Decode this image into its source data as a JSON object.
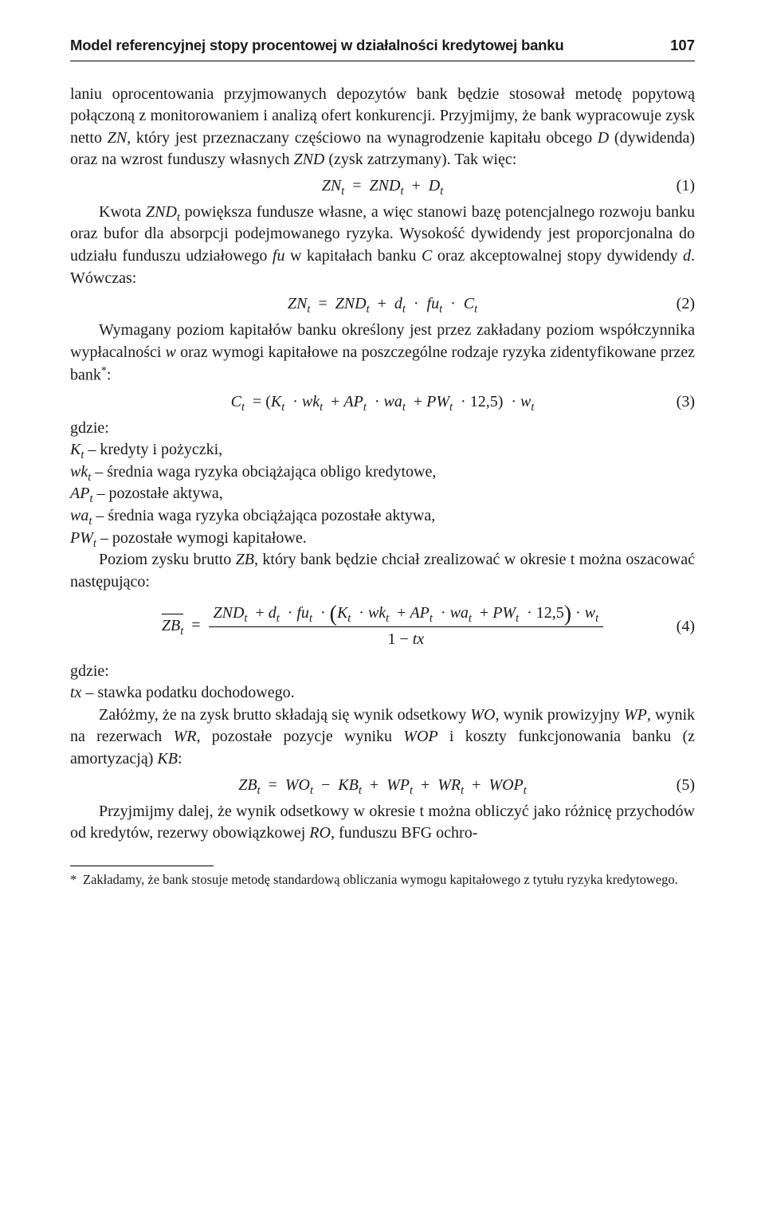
{
  "page": {
    "running_title": "Model referencyjnej stopy procentowej w działalności kredytowej banku",
    "page_number": "107"
  },
  "para": {
    "p1": "laniu oprocentowania przyjmowanych depozytów bank będzie stosował metodę popytową połączoną z monitorowaniem i analizą ofert konkurencji. Przyjmijmy, że bank wypracowuje zysk netto ",
    "p1_zn": "ZN",
    "p1b": ", który jest przeznaczany częściowo na wynagrodzenie kapitału obcego ",
    "p1_d": "D",
    "p1c": " (dywidenda) oraz na wzrost funduszy własnych ",
    "p1_znd": "ZND",
    "p1d": " (zysk zatrzymany). Tak więc:",
    "p2a": "Kwota ",
    "p2_znd": "ZND",
    "p2_sub": "t",
    "p2b": " powiększa fundusze własne, a więc stanowi bazę potencjalnego rozwoju banku oraz bufor dla absorpcji podejmowanego ryzyka. Wysokość dywidendy jest proporcjonalna do udziału funduszu udziałowego ",
    "p2_fu": "fu",
    "p2c": " w kapitałach banku ",
    "p2_c": "C",
    "p2d": " oraz akceptowalnej stopy dywidendy ",
    "p2_dd": "d",
    "p2e": ". Wówczas:",
    "p3a": "Wymagany poziom kapitałów banku określony jest przez zakładany poziom współczynnika wypłacalności ",
    "p3_w": "w",
    "p3b": " oraz wymogi kapitałowe na poszczególne rodzaje ryzyka zidentyfikowane przez bank",
    "p3_star": "*",
    "p3c": ":",
    "where_label": "gdzie:",
    "def_K": "K",
    "def_K_sub": "t",
    "def_K_txt": " – kredyty i pożyczki,",
    "def_wk": "wk",
    "def_wk_sub": "t",
    "def_wk_txt": " – średnia waga ryzyka obciążająca obligo kredytowe,",
    "def_AP": "AP",
    "def_AP_sub": "t",
    "def_AP_txt": " – pozostałe aktywa,",
    "def_wa": "wa",
    "def_wa_sub": "t",
    "def_wa_txt": " – średnia waga ryzyka obciążająca pozostałe aktywa,",
    "def_PW": "PW",
    "def_PW_sub": "t",
    "def_PW_txt": " – pozostałe wymogi kapitałowe.",
    "p4a": "Poziom zysku brutto ",
    "p4_zb": "ZB",
    "p4b": ", który bank będzie chciał zrealizować w okresie t można oszacować następująco:",
    "where_label2": "gdzie:",
    "def_tx": "tx",
    "def_tx_txt": " – stawka podatku dochodowego.",
    "p5a": "Załóżmy, że na zysk brutto składają się wynik odsetkowy ",
    "p5_wo": "WO",
    "p5b": ", wynik prowizyjny ",
    "p5_wp": "WP",
    "p5c": ", wynik na rezerwach ",
    "p5_wr": "WR",
    "p5d": ", pozostałe pozycje wyniku ",
    "p5_wop": "WOP",
    "p5e": " i koszty funkcjonowania banku (z amortyzacją) ",
    "p5_kb": "KB",
    "p5f": ":",
    "p6a": "Przyjmijmy dalej, że wynik odsetkowy w okresie t można obliczyć jako różnicę przychodów od kredytów, rezerwy obowiązkowej ",
    "p6_ro": "RO",
    "p6b": ", funduszu BFG ochro-"
  },
  "equations": {
    "eq1": {
      "number": "(1)"
    },
    "eq2": {
      "number": "(2)"
    },
    "eq3": {
      "number": "(3)"
    },
    "eq4": {
      "number": "(4)"
    },
    "eq5": {
      "number": "(5)"
    },
    "const_12_5": "12,5",
    "one": "1",
    "sub_t": "t"
  },
  "sym": {
    "ZN": "ZN",
    "ZND": "ZND",
    "D": "D",
    "d": "d",
    "fu": "fu",
    "C": "C",
    "K": "K",
    "wk": "wk",
    "AP": "AP",
    "wa": "wa",
    "PW": "PW",
    "w": "w",
    "ZB": "ZB",
    "tx": "tx",
    "WO": "WO",
    "KB": "KB",
    "WP": "WP",
    "WR": "WR",
    "WOP": "WOP"
  },
  "footnote": {
    "marker": "*",
    "text": "Zakładamy, że bank stosuje metodę standardową obliczania wymogu kapitałowego z tytułu ryzyka kredytowego."
  }
}
